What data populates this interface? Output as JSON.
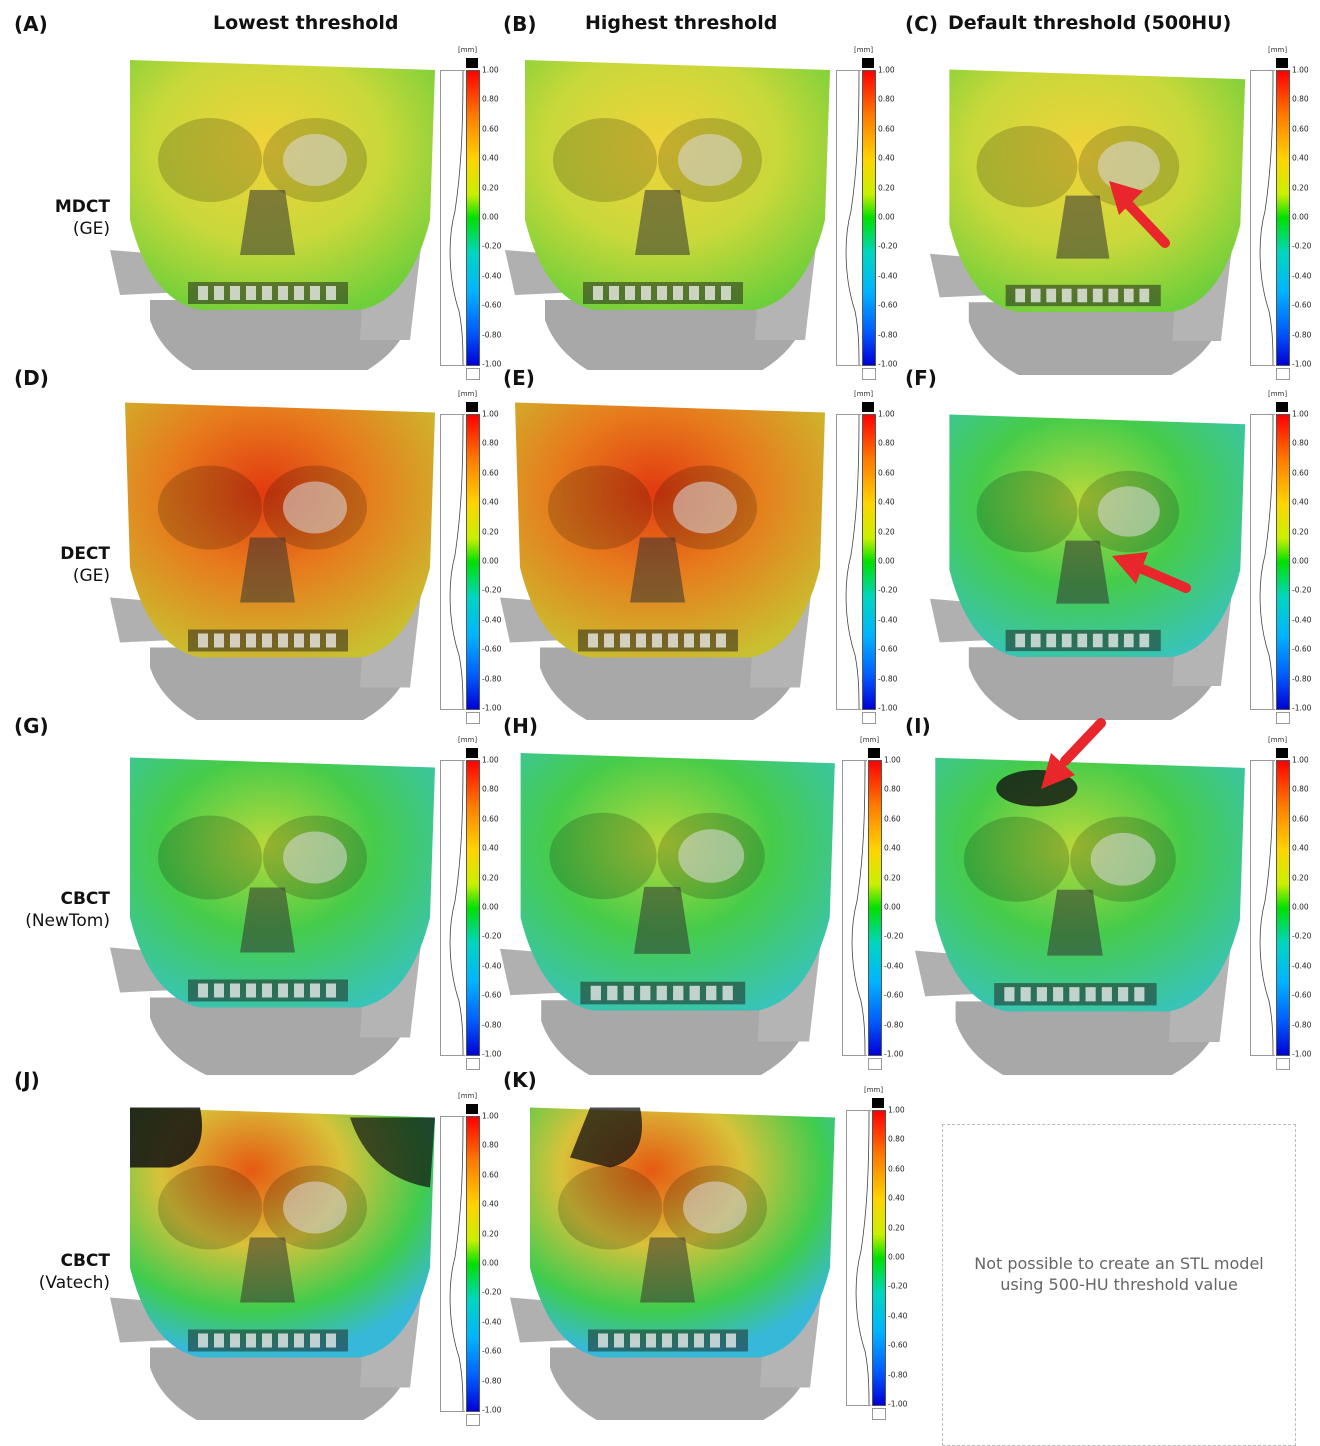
{
  "columns": [
    "Lowest threshold",
    "Highest threshold",
    "Default threshold (500HU)"
  ],
  "rows": [
    {
      "modality": "MDCT",
      "vendor": "(GE)"
    },
    {
      "modality": "DECT",
      "vendor": "(GE)"
    },
    {
      "modality": "CBCT",
      "vendor": "(NewTom)"
    },
    {
      "modality": "CBCT",
      "vendor": "(Vatech)"
    }
  ],
  "panels": [
    "(A)",
    "(B)",
    "(C)",
    "(D)",
    "(E)",
    "(F)",
    "(G)",
    "(H)",
    "(I)",
    "(J)",
    "(K)"
  ],
  "colorbar": {
    "unit": "[mm]",
    "ticks": [
      "1.00",
      "0.80",
      "0.60",
      "0.40",
      "0.20",
      "0.00",
      "-0.20",
      "-0.40",
      "-0.60",
      "-0.80",
      "-1.00"
    ]
  },
  "note": "Not possible to create an STL model using 500-HU threshold value",
  "colors": {
    "arrow": "#e8262b",
    "bone_gray": "#a9a9a9"
  }
}
